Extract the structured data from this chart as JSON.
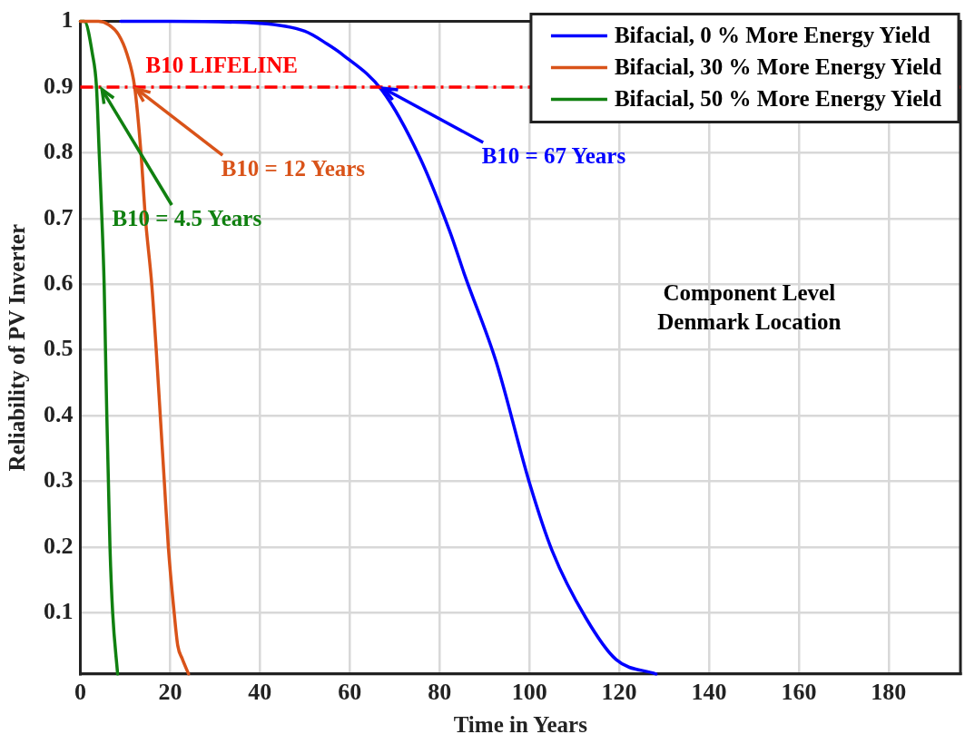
{
  "chart_data": {
    "type": "line",
    "xlabel": "Time in Years",
    "ylabel": "Reliability of PV Inverter",
    "xlim": [
      0,
      196
    ],
    "xticks": [
      0,
      20,
      40,
      60,
      80,
      100,
      120,
      140,
      160,
      180
    ],
    "ylim": [
      0.007,
      1
    ],
    "yticks": [
      0.1,
      0.2,
      0.3,
      0.4,
      0.5,
      0.6,
      0.7,
      0.8,
      0.9,
      1
    ],
    "grid": true,
    "legend": "top right",
    "marker": "none",
    "line_style": "solid",
    "series": [
      {
        "name": "Bifacial, 0 % More Energy Yield",
        "color": "#0000ff",
        "x": [
          9,
          20,
          40,
          50,
          54.9,
          58.3,
          67.2,
          75.6,
          82.3,
          85.7,
          92.6,
          100.1,
          105.1,
          112.6,
          119.3,
          128.2
        ],
        "values": [
          1,
          1,
          0.997,
          0.985,
          0.966,
          0.95,
          0.895,
          0.793,
          0.68,
          0.612,
          0.482,
          0.296,
          0.194,
          0.092,
          0.029,
          0.007
        ]
      },
      {
        "name": "Bifacial, 30 % More Energy Yield",
        "color": "#d95319",
        "x": [
          0,
          4,
          6.3,
          8.5,
          10.4,
          12.1,
          13.5,
          14.5,
          15.9,
          16.9,
          17.8,
          18.7,
          19.6,
          20.9,
          21.7,
          22.7,
          24.1
        ],
        "values": [
          1,
          1,
          0.995,
          0.98,
          0.95,
          0.9,
          0.8,
          0.7,
          0.6,
          0.5,
          0.4,
          0.3,
          0.2,
          0.1,
          0.05,
          0.03,
          0.007
        ]
      },
      {
        "name": "Bifacial, 50 % More Energy Yield",
        "color": "#108010",
        "x": [
          0,
          0.9,
          2.7,
          3.6,
          4.2,
          4.8,
          5.3,
          5.6,
          5.9,
          6.25,
          6.6,
          7.2,
          8.3
        ],
        "values": [
          1,
          1,
          0.95,
          0.9,
          0.8,
          0.7,
          0.6,
          0.5,
          0.4,
          0.3,
          0.2,
          0.1,
          0.007
        ]
      }
    ],
    "ref_lines": [
      {
        "axis": "y",
        "value": 0.9,
        "label": "B10 LIFELINE",
        "color": "#ff0000",
        "line_style": "dashed"
      }
    ],
    "annotations": [
      {
        "text": "B10 = 12 Years",
        "x": 12,
        "y": 0.9
      },
      {
        "text": "B10 = 4.5 Years",
        "x": 4.5,
        "y": 0.9
      },
      {
        "text": "B10 = 67 Years",
        "x": 67,
        "y": 0.9
      },
      "Component Level\nDenmark Location"
    ]
  }
}
